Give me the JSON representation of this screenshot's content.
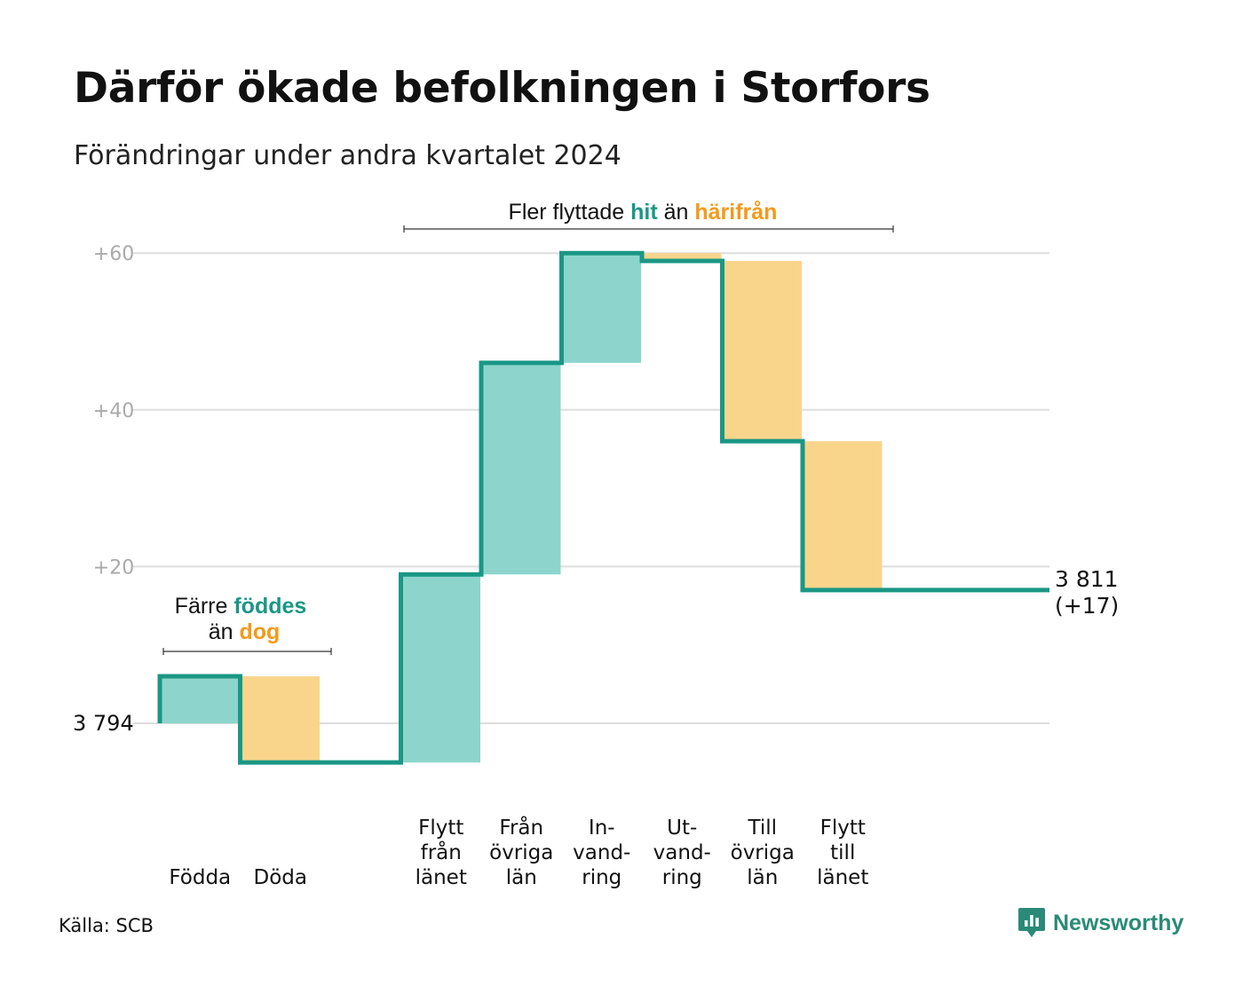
{
  "header": {
    "title": "Därför ökade befolkningen i Storfors",
    "subtitle": "Förändringar under andra kvartalet 2024"
  },
  "colors": {
    "increase": "#8dd5cc",
    "decrease": "#f9d58c",
    "line": "#1a9785",
    "highlight_teal": "#1a9785",
    "highlight_orange": "#f39a1b",
    "grid": "#dddddd",
    "tick": "#aaaaaa"
  },
  "chart_data": {
    "type": "waterfall",
    "start_value": 3794,
    "start_label": "3 794",
    "end_label": "3 811",
    "end_change_label": "(+17)",
    "y_ticks": [
      {
        "value": 20,
        "label": "+20"
      },
      {
        "value": 40,
        "label": "+40"
      },
      {
        "value": 60,
        "label": "+60"
      }
    ],
    "grid": true,
    "steps": [
      {
        "label_lines": [
          "Födda"
        ],
        "change": 6
      },
      {
        "label_lines": [
          "Döda"
        ],
        "change": -11
      },
      {
        "label_lines": [],
        "change": 0
      },
      {
        "label_lines": [
          "Flytt",
          "från",
          "länet"
        ],
        "change": 24
      },
      {
        "label_lines": [
          "Från",
          "övriga",
          "län"
        ],
        "change": 27
      },
      {
        "label_lines": [
          "In-",
          "vand-",
          "ring"
        ],
        "change": 14
      },
      {
        "label_lines": [
          "Ut-",
          "vand-",
          "ring"
        ],
        "change": -1
      },
      {
        "label_lines": [
          "Till",
          "övriga",
          "län"
        ],
        "change": -23
      },
      {
        "label_lines": [
          "Flytt",
          "till",
          "länet"
        ],
        "change": -19
      }
    ]
  },
  "annotations": {
    "births": {
      "line1_prefix": "Färre ",
      "line1_highlight": "föddes",
      "line2_prefix": "än ",
      "line2_highlight": "dog"
    },
    "migration": {
      "prefix": "Fler flyttade ",
      "highlight1": "hit",
      "middle": " än ",
      "highlight2": "härifrån"
    }
  },
  "footer": {
    "source": "Källa: SCB",
    "brand": "Newsworthy",
    "brand_icon": "newsworthy-logo-icon"
  }
}
